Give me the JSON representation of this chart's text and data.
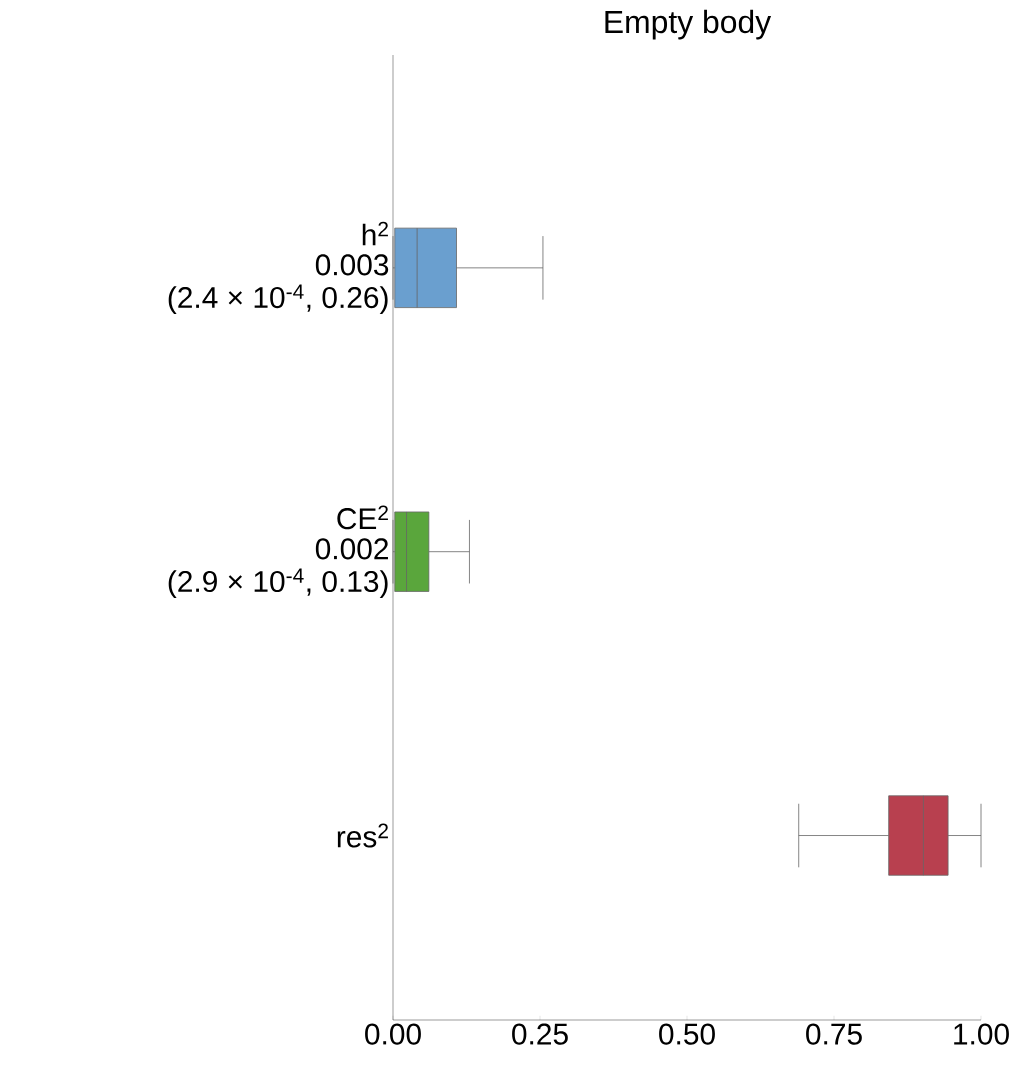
{
  "chart_data": {
    "type": "box",
    "orientation": "horizontal",
    "title": "Empty body",
    "categories": [
      "h$^{2}$",
      "CE$^{2}$",
      "res$^{2}$"
    ],
    "colors": [
      "#6a9fcf",
      "#5aa63c",
      "#b8404f"
    ],
    "boxes": [
      {
        "low": 0,
        "q1": 0.003,
        "median": 0.041,
        "q3": 0.108,
        "high": 0.255
      },
      {
        "low": 0,
        "q1": 0.003,
        "median": 0.023,
        "q3": 0.061,
        "high": 0.13
      },
      {
        "low": 0.69,
        "q1": 0.843,
        "median": 0.902,
        "q3": 0.944,
        "high": 1.0
      }
    ],
    "annotations": [
      "0.003",
      "(2.4 × 10$^{-4}$, 0.26)",
      "0.002",
      "(2.9 × 10$^{-4}$, 0.13)"
    ],
    "xlim": [
      0,
      1.0
    ],
    "xticks": [
      {
        "value": 0,
        "label": "0.00"
      },
      {
        "value": 0.25,
        "label": "0.25"
      },
      {
        "value": 0.5,
        "label": "0.50"
      },
      {
        "value": 0.75,
        "label": "0.75"
      },
      {
        "value": 1.0,
        "label": "1.00"
      }
    ],
    "grid": false
  }
}
